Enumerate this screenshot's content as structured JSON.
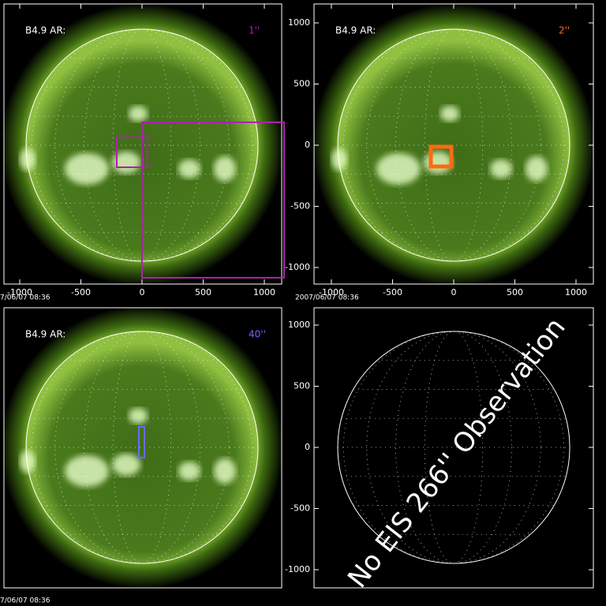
{
  "panels": [
    {
      "label": "B4.9 AR:",
      "resolution": "1''",
      "color": "#b020b0",
      "timestamp": "7/06/07 08:36"
    },
    {
      "label": "B4.9 AR:",
      "resolution": "2''",
      "color": "#ff6a10",
      "timestamp": "2007/06/07 08:36"
    },
    {
      "label": "B4.9 AR:",
      "resolution": "40''",
      "color": "#6a6aff",
      "timestamp": "7/06/07 08:36"
    }
  ],
  "no_data_message": "No EIS 266'' Observation",
  "axes": {
    "xticks": [
      -1000,
      -500,
      0,
      500,
      1000
    ],
    "yticks": [
      1000,
      500,
      0,
      -500,
      -1000
    ]
  }
}
